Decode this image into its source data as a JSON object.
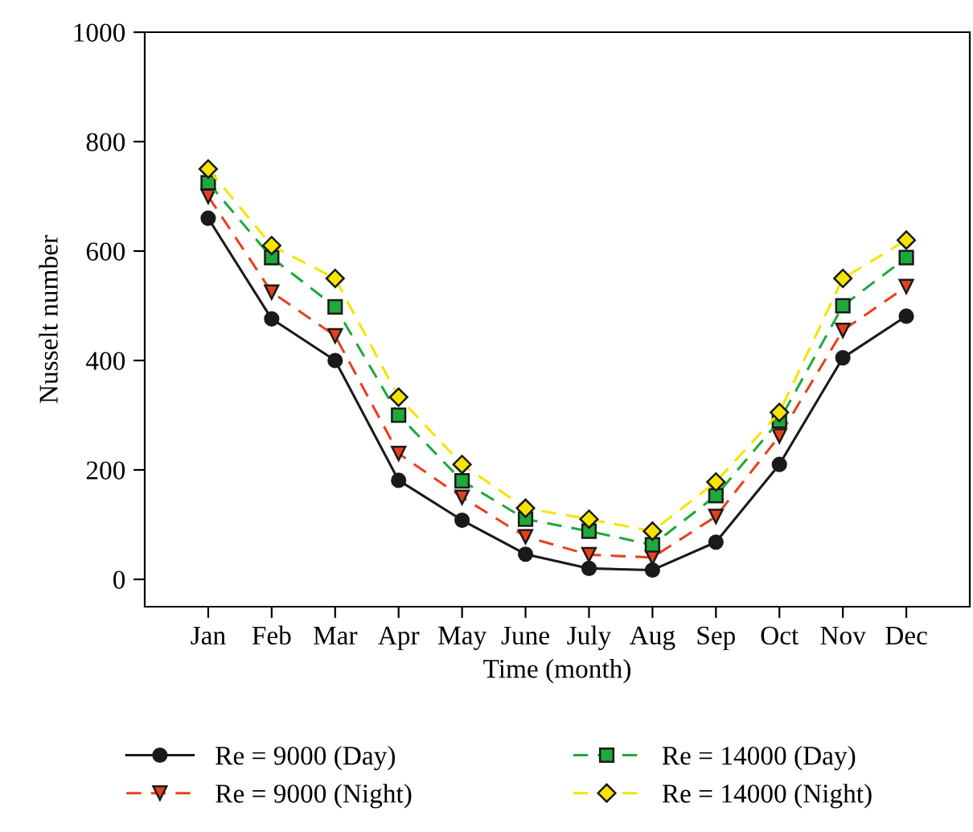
{
  "chart_data": {
    "type": "line",
    "xlabel": "Time (month)",
    "ylabel": "Nusselt number",
    "categories": [
      "Jan",
      "Feb",
      "Mar",
      "Apr",
      "May",
      "June",
      "July",
      "Aug",
      "Sep",
      "Oct",
      "Nov",
      "Dec"
    ],
    "series": [
      {
        "name": "Re = 9000 (Day)",
        "color": "#1a1a1a",
        "marker": "circle",
        "line_style": "solid",
        "values": [
          660,
          476,
          400,
          181,
          108,
          46,
          20,
          17,
          68,
          210,
          405,
          481
        ]
      },
      {
        "name": "Re = 9000 (Night)",
        "color": "#e8401c",
        "marker": "triangle",
        "line_style": "dashed",
        "values": [
          700,
          525,
          445,
          230,
          150,
          78,
          45,
          40,
          115,
          262,
          455,
          535
        ]
      },
      {
        "name": "Re = 14000 (Day)",
        "color": "#1fa83c",
        "marker": "square",
        "line_style": "dashed",
        "values": [
          725,
          588,
          498,
          300,
          180,
          110,
          88,
          63,
          153,
          290,
          500,
          588
        ]
      },
      {
        "name": "Re = 14000 (Night)",
        "color": "#f5e400",
        "marker": "diamond",
        "line_style": "dashed",
        "values": [
          750,
          610,
          550,
          333,
          210,
          130,
          110,
          88,
          178,
          305,
          550,
          620
        ]
      }
    ],
    "ylim": [
      -50,
      1000
    ],
    "yticks": [
      0,
      200,
      400,
      600,
      800,
      1000
    ],
    "grid": false,
    "legend": "bottom"
  }
}
